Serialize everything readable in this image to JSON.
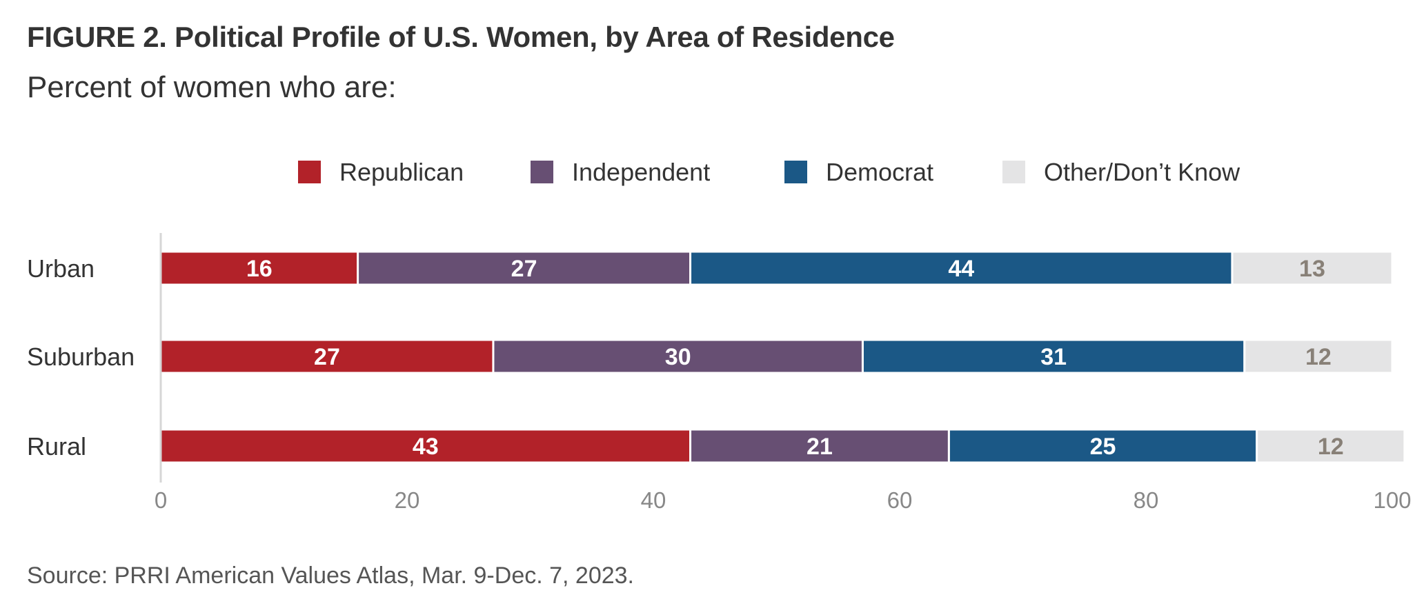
{
  "title": "FIGURE 2.  Political Profile of U.S. Women, by Area of Residence",
  "subtitle": "Percent of women who are:",
  "source": "Source: PRRI American Values Atlas, Mar. 9-Dec. 7, 2023.",
  "chart_data": {
    "type": "bar",
    "orientation": "horizontal",
    "stacked": true,
    "categories": [
      "Urban",
      "Suburban",
      "Rural"
    ],
    "series": [
      {
        "name": "Republican",
        "color": "#b22229",
        "label_color": "#ffffff",
        "values": [
          16,
          27,
          43
        ]
      },
      {
        "name": "Independent",
        "color": "#674f73",
        "label_color": "#ffffff",
        "values": [
          27,
          30,
          21
        ]
      },
      {
        "name": "Democrat",
        "color": "#1b5886",
        "label_color": "#ffffff",
        "values": [
          44,
          31,
          25
        ]
      },
      {
        "name": "Other/Don’t Know",
        "color": "#e4e4e5",
        "label_color": "#888077",
        "values": [
          13,
          12,
          12
        ]
      }
    ],
    "xlim": [
      0,
      100
    ],
    "xticks": [
      0,
      20,
      40,
      60,
      80,
      100
    ],
    "grid": false,
    "legend_position": "top"
  }
}
